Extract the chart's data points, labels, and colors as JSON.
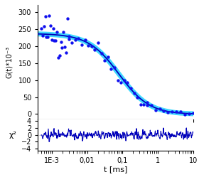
{
  "main_ylabel": "G(t)*10⁻³",
  "residual_ylabel": "χ²",
  "xlabel": "t [ms]",
  "main_ylim": [
    -15,
    320
  ],
  "main_yticks": [
    0,
    50,
    100,
    150,
    200,
    250,
    300
  ],
  "residual_ylim": [
    -4.5,
    4.5
  ],
  "residual_yticks": [
    -4,
    -2,
    0,
    2,
    4
  ],
  "xlim": [
    0.0004,
    10
  ],
  "xticks": [
    0.001,
    0.01,
    0.1,
    1,
    10
  ],
  "xticklabels": [
    "1E-3",
    "0,01",
    "0,1",
    "1",
    "10"
  ],
  "dot_color": "#1010ee",
  "fit_color_outer": "#00ccff",
  "fit_color_inner": "#0000bb",
  "residual_color": "#0000bb",
  "background_color": "#ffffff",
  "tau_D": 0.08,
  "G0": 237,
  "kappa": 7,
  "scatter_noise_early": 35,
  "scatter_noise_late": 8,
  "residual_noise": 1.1
}
